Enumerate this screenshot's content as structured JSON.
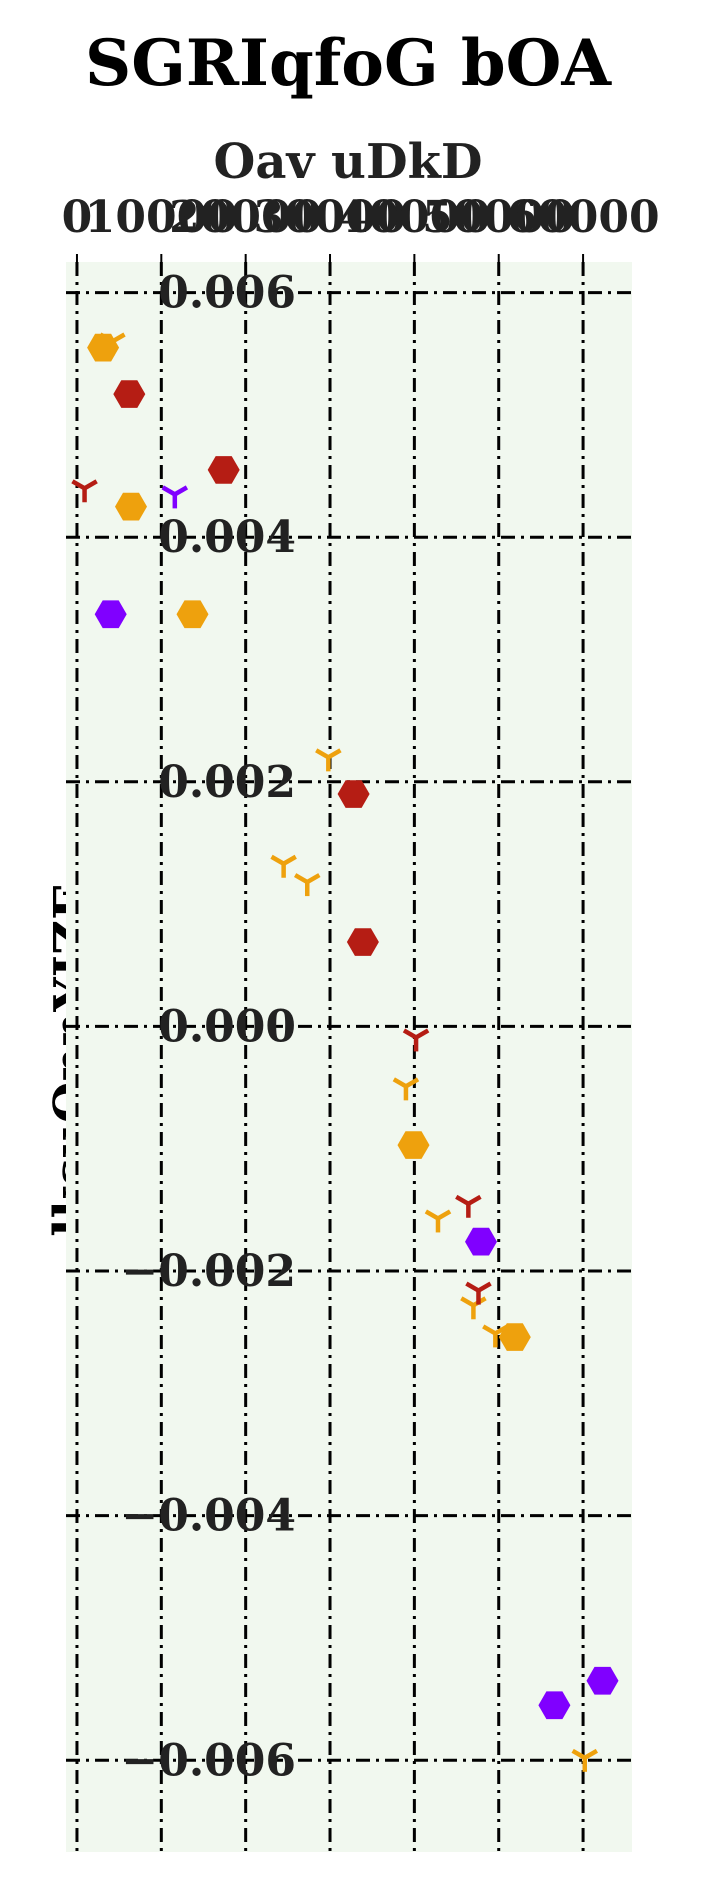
{
  "chart_data": {
    "type": "scatter",
    "title": "SGRIqfoG bOA",
    "xlabel": "Oav uDkD",
    "ylabel": "lksuOnnYIZE",
    "xlim": [
      -1300,
      65800
    ],
    "ylim": [
      -0.00675,
      0.00625
    ],
    "x_ticks": [
      0,
      10000,
      20000,
      30000,
      40000,
      50000,
      60000
    ],
    "x_tick_labels": [
      "0",
      "10000",
      "20000",
      "30000",
      "40000",
      "50000",
      "60000"
    ],
    "y_ticks": [
      0.006,
      0.004,
      0.002,
      0.0,
      -0.002,
      -0.004,
      -0.006
    ],
    "y_tick_labels": [
      "0.006",
      "0.004",
      "0.002",
      "0.000",
      "−0.002",
      "−0.004",
      "−0.006"
    ],
    "x_axis_position": "top",
    "grid": true,
    "grid_style": "dash-dot",
    "background": "#f1f8ef",
    "colors": {
      "orange": "#eea10d",
      "red": "#b51d14",
      "purple": "#8000ff"
    },
    "series": [
      {
        "color": "#eea10d",
        "marker": "hexagon",
        "points": [
          [
            3100,
            0.00555
          ],
          [
            6400,
            0.00425
          ],
          [
            13700,
            0.00337
          ],
          [
            39900,
            -0.00097
          ],
          [
            51900,
            -0.00254
          ]
        ]
      },
      {
        "color": "#b51d14",
        "marker": "hexagon",
        "points": [
          [
            6200,
            0.00517
          ],
          [
            17400,
            0.00455
          ],
          [
            32800,
            0.0019
          ],
          [
            33900,
            0.00069
          ]
        ]
      },
      {
        "color": "#8000ff",
        "marker": "hexagon",
        "points": [
          [
            4000,
            0.00337
          ],
          [
            47900,
            -0.00176
          ],
          [
            56600,
            -0.00555
          ],
          [
            62300,
            -0.00535
          ]
        ]
      },
      {
        "color": "#eea10d",
        "marker": "tri",
        "points": [
          [
            4200,
            0.0056
          ],
          [
            29800,
            0.0022
          ],
          [
            24500,
            0.00133
          ],
          [
            27300,
            0.00118
          ],
          [
            39000,
            -0.00049
          ],
          [
            42800,
            -0.00157
          ],
          [
            47000,
            -0.00228
          ],
          [
            49600,
            -0.00251
          ],
          [
            60200,
            -0.00598
          ]
        ]
      },
      {
        "color": "#b51d14",
        "marker": "tri",
        "points": [
          [
            900,
            0.0044
          ],
          [
            40200,
            -9e-05
          ],
          [
            46400,
            -0.00145
          ],
          [
            47600,
            -0.00216
          ]
        ]
      },
      {
        "color": "#8000ff",
        "marker": "tri",
        "points": [
          [
            11600,
            0.00435
          ]
        ]
      }
    ]
  }
}
